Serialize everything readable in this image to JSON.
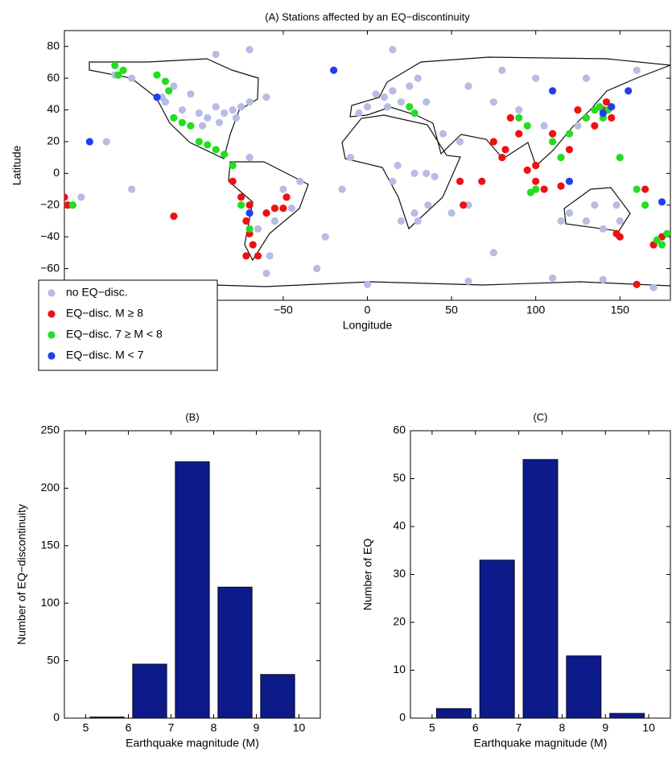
{
  "chart_data": [
    {
      "type": "scatter",
      "title": "(A) Stations affected by an EQ−discontinuity",
      "x_label": "Longitude",
      "y_label": "Latitude",
      "xlim": [
        -180,
        180
      ],
      "ylim": [
        -80,
        90
      ],
      "xticks": [
        {
          "value": -50,
          "label": "−50"
        },
        0,
        50,
        100,
        150
      ],
      "yticks": [
        {
          "value": -60,
          "label": "−60"
        },
        {
          "value": -40,
          "label": "−40"
        },
        {
          "value": -20,
          "label": "−20"
        },
        0,
        20,
        40,
        60,
        80
      ],
      "legend": "lower left",
      "series": [
        {
          "name": "no EQ−disc.",
          "color": "#b7bbe6",
          "x": [
            -120,
            -110,
            -100,
            -95,
            -90,
            -85,
            -80,
            -75,
            -105,
            -115,
            -122,
            -98,
            -88,
            -78,
            -70,
            -150,
            -155,
            -140,
            -60,
            -50,
            -45,
            -40,
            -65,
            -55,
            -70,
            -58,
            -48,
            5,
            10,
            15,
            20,
            25,
            30,
            35,
            0,
            -5,
            12,
            18,
            28,
            40,
            45,
            60,
            75,
            90,
            105,
            110,
            120,
            130,
            140,
            148,
            150,
            135,
            125,
            115,
            170,
            -170,
            -10,
            15,
            30,
            35,
            -15,
            20,
            28,
            36,
            -25,
            50,
            60,
            -140,
            -175,
            75,
            -30,
            0,
            60,
            110,
            140,
            170,
            -60,
            130,
            100,
            80,
            160,
            -90,
            -70,
            15,
            55
          ],
          "y": [
            45,
            40,
            38,
            35,
            42,
            38,
            40,
            42,
            50,
            55,
            48,
            30,
            32,
            35,
            45,
            62,
            20,
            60,
            48,
            -10,
            -22,
            -5,
            -35,
            -30,
            10,
            -52,
            -15,
            50,
            48,
            52,
            45,
            55,
            60,
            45,
            42,
            38,
            42,
            5,
            -25,
            -2,
            25,
            55,
            45,
            40,
            30,
            25,
            -25,
            -30,
            -35,
            -20,
            -30,
            -20,
            30,
            -30,
            -45,
            -15,
            10,
            -5,
            -30,
            0,
            -10,
            -30,
            0,
            -20,
            -40,
            -25,
            -20,
            -10,
            -20,
            -50,
            -60,
            -70,
            -68,
            -66,
            -67,
            -72,
            -63,
            60,
            60,
            65,
            65,
            75,
            78,
            78,
            20
          ]
        },
        {
          "name": "EQ−disc. M ≥ 8",
          "color": "#ee1111",
          "x": [
            -70,
            -72,
            -70,
            -68,
            -72,
            -65,
            -60,
            -55,
            -50,
            -48,
            -75,
            -80,
            -180,
            -178,
            -115,
            57,
            55,
            75,
            80,
            82,
            100,
            105,
            110,
            120,
            125,
            130,
            135,
            140,
            142,
            145,
            150,
            148,
            170,
            160,
            100,
            95,
            85,
            90,
            115,
            165,
            175,
            68
          ],
          "y": [
            -20,
            -30,
            -38,
            -45,
            -52,
            -52,
            -25,
            -22,
            -22,
            -15,
            -15,
            -5,
            -15,
            -20,
            -27,
            -20,
            -5,
            20,
            10,
            15,
            -5,
            -10,
            25,
            15,
            40,
            35,
            30,
            40,
            45,
            35,
            -40,
            -38,
            -45,
            -70,
            5,
            2,
            35,
            25,
            -8,
            -10,
            -40,
            -5
          ]
        },
        {
          "name": "EQ−disc. 7 ≥ M < 8",
          "color": "#22dd22",
          "x": [
            -150,
            -148,
            -145,
            -125,
            -120,
            -118,
            -115,
            -110,
            -105,
            -100,
            -95,
            -90,
            -85,
            -80,
            -75,
            -70,
            -175,
            25,
            28,
            100,
            95,
            110,
            120,
            130,
            135,
            138,
            140,
            143,
            150,
            160,
            165,
            172,
            175,
            178,
            90,
            97,
            115
          ],
          "y": [
            68,
            62,
            65,
            62,
            58,
            52,
            35,
            32,
            30,
            20,
            18,
            15,
            12,
            5,
            -20,
            -35,
            -20,
            42,
            38,
            -10,
            30,
            20,
            25,
            35,
            40,
            42,
            35,
            40,
            10,
            -10,
            -20,
            -42,
            -45,
            -38,
            35,
            -12,
            10
          ]
        },
        {
          "name": "EQ−disc. M < 7",
          "color": "#1f3ff0",
          "x": [
            -125,
            -165,
            -20,
            110,
            -70,
            140,
            145,
            155,
            120,
            175
          ],
          "y": [
            48,
            20,
            65,
            52,
            -25,
            38,
            42,
            52,
            -5,
            -18
          ]
        }
      ]
    },
    {
      "type": "histogram",
      "title": "(B)",
      "x_label": "Earthquake magnitude (M)",
      "y_label": "Number of EQ−discontinuity",
      "bins": [
        5,
        6,
        7,
        8,
        9,
        10
      ],
      "counts": [
        1,
        47,
        223,
        114,
        38
      ],
      "color": "#0c1a8a",
      "xlim": [
        4.5,
        10.5
      ],
      "ylim": [
        0,
        250
      ],
      "xticks": [
        5,
        6,
        7,
        8,
        9,
        10
      ],
      "yticks": [
        0,
        50,
        100,
        150,
        200,
        250
      ]
    },
    {
      "type": "histogram",
      "title": "(C)",
      "x_label": "Earthquake magnitude (M)",
      "y_label": "Number of EQ",
      "bins": [
        5,
        6,
        7,
        8,
        9,
        10
      ],
      "counts": [
        2,
        33,
        54,
        13,
        1
      ],
      "color": "#0c1a8a",
      "xlim": [
        4.5,
        10.5
      ],
      "ylim": [
        0,
        60
      ],
      "xticks": [
        5,
        6,
        7,
        8,
        9,
        10
      ],
      "yticks": [
        0,
        10,
        20,
        30,
        40,
        50,
        60
      ]
    }
  ]
}
